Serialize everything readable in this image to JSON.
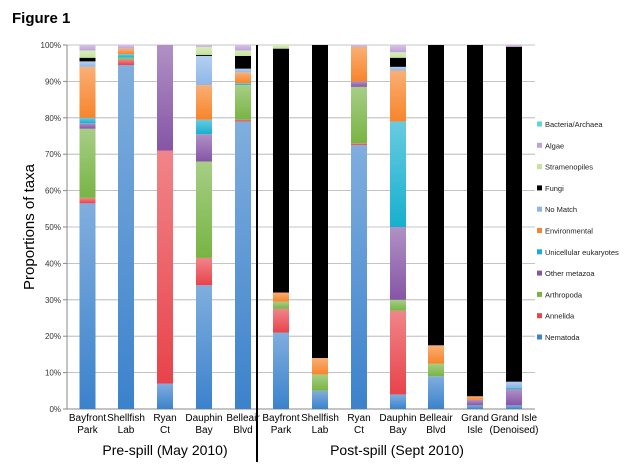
{
  "figure_label": "Figure 1",
  "chart_data": {
    "type": "bar",
    "stacked": true,
    "ylabel": "Proportions of taxa",
    "ylim": [
      0,
      100
    ],
    "yticks": [
      "0%",
      "10%",
      "20%",
      "30%",
      "40%",
      "50%",
      "60%",
      "70%",
      "80%",
      "90%",
      "100%"
    ],
    "grid": true,
    "legend_placement": "right",
    "groups": [
      {
        "label": "Pre-spill (May 2010)",
        "categories": [
          [
            "Bayfront",
            "Park"
          ],
          [
            "Shellfish",
            "Lab"
          ],
          [
            "Ryan",
            "Ct"
          ],
          [
            "Dauphin",
            "Bay"
          ],
          [
            "Belleair",
            "Blvd"
          ]
        ]
      },
      {
        "label": "Post-spill (Sept 2010)",
        "categories": [
          [
            "Bayfront",
            "Park"
          ],
          [
            "Shellfish",
            "Lab"
          ],
          [
            "Ryan",
            "Ct"
          ],
          [
            "Dauphin",
            "Bay"
          ],
          [
            "Belleair",
            "Blvd"
          ],
          [
            "Grand",
            "Isle"
          ],
          [
            "Grand Isle",
            "(Denoised)"
          ]
        ]
      }
    ],
    "series": [
      {
        "name": "Nematoda",
        "color": "#3b82cc",
        "values": [
          56.5,
          94.5,
          7,
          34,
          79,
          21,
          5,
          72.5,
          4,
          9,
          1,
          1
        ]
      },
      {
        "name": "Annelida",
        "color": "#e8434a",
        "values": [
          1.5,
          1.5,
          64,
          7.5,
          0.5,
          6.5,
          0,
          0.5,
          23,
          0,
          0,
          0
        ]
      },
      {
        "name": "Arthropoda",
        "color": "#78b444",
        "values": [
          19,
          0.5,
          0,
          26.5,
          9.5,
          2,
          4.5,
          15.5,
          3,
          3.5,
          0,
          0
        ]
      },
      {
        "name": "Other metazoa",
        "color": "#8655a6",
        "values": [
          1.5,
          0,
          29,
          7.5,
          0,
          0,
          0,
          1.5,
          20,
          0,
          1.5,
          4.5
        ]
      },
      {
        "name": "Unicellular eukaryotes",
        "color": "#17afcf",
        "values": [
          1.5,
          1,
          0,
          4,
          0.5,
          0,
          0,
          0,
          29,
          0,
          0,
          0.5
        ]
      },
      {
        "name": "Environmental",
        "color": "#f7842a",
        "values": [
          14,
          1.5,
          0,
          9.5,
          3,
          2.5,
          4.5,
          9.5,
          14,
          5,
          1,
          0
        ]
      },
      {
        "name": "No Match",
        "color": "#8db6e8",
        "values": [
          1.5,
          0,
          0,
          8,
          1,
          0,
          0,
          0,
          1,
          0,
          0,
          1.5
        ]
      },
      {
        "name": "Fungi",
        "color": "#000000",
        "values": [
          1,
          0,
          0,
          0.3,
          3.5,
          67,
          86,
          0,
          2.5,
          82.5,
          96.5,
          92
        ]
      },
      {
        "name": "Stramenopiles",
        "color": "#c5e49a",
        "values": [
          2,
          0,
          0,
          2.2,
          1.5,
          1,
          0,
          0,
          1.5,
          0,
          0,
          0
        ]
      },
      {
        "name": "Algae",
        "color": "#bfa2d8",
        "values": [
          1.5,
          1,
          0,
          0.5,
          1.5,
          0,
          0,
          0.5,
          2,
          0,
          0,
          0.5
        ]
      },
      {
        "name": "Bacteria/Archaea",
        "color": "#5fd2e2",
        "values": [
          0,
          0,
          0,
          0,
          0,
          0,
          0,
          0,
          0,
          0,
          0,
          0
        ]
      }
    ]
  }
}
